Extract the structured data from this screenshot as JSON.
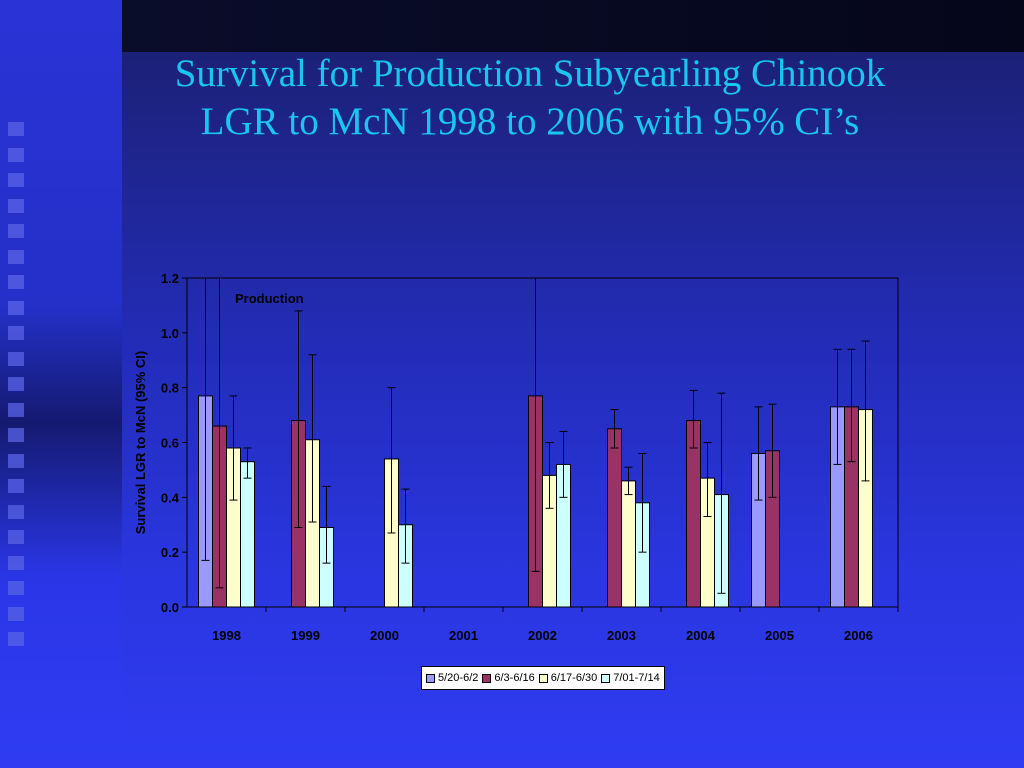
{
  "slide": {
    "title_line1": "Survival for Production Subyearling Chinook",
    "title_line2": "LGR to McN 1998 to 2006 with 95% CI’s"
  },
  "colors": {
    "title": "#19c6f0",
    "series": [
      "#9999ff",
      "#993366",
      "#ffffcc",
      "#ccffff"
    ]
  },
  "chart_data": {
    "type": "bar",
    "title": "",
    "annotation": "Production",
    "xlabel": "",
    "ylabel": "Survival LGR to McN (95% CI)",
    "ylim": [
      0,
      1.2
    ],
    "yticks": [
      "0.0",
      "0.2",
      "0.4",
      "0.6",
      "0.8",
      "1.0",
      "1.2"
    ],
    "grid": false,
    "legend_position": "bottom",
    "categories": [
      "1998",
      "1999",
      "2000",
      "2001",
      "2002",
      "2003",
      "2004",
      "2005",
      "2006"
    ],
    "series": [
      {
        "name": "5/20-6/2",
        "values": [
          0.77,
          null,
          null,
          null,
          null,
          null,
          null,
          0.56,
          0.73
        ],
        "ci_low": [
          0.17,
          null,
          null,
          null,
          null,
          null,
          null,
          0.39,
          0.52
        ],
        "ci_high": [
          1.2,
          null,
          null,
          null,
          null,
          null,
          null,
          0.73,
          0.94
        ]
      },
      {
        "name": "6/3-6/16",
        "values": [
          0.66,
          0.68,
          null,
          null,
          0.77,
          0.65,
          0.68,
          0.57,
          0.73
        ],
        "ci_low": [
          0.07,
          0.29,
          null,
          null,
          0.13,
          0.58,
          0.58,
          0.4,
          0.53
        ],
        "ci_high": [
          1.2,
          1.08,
          null,
          null,
          1.2,
          0.72,
          0.79,
          0.74,
          0.94
        ]
      },
      {
        "name": "6/17-6/30",
        "values": [
          0.58,
          0.61,
          0.54,
          null,
          0.48,
          0.46,
          0.47,
          null,
          0.72
        ],
        "ci_low": [
          0.39,
          0.31,
          0.27,
          null,
          0.36,
          0.41,
          0.33,
          null,
          0.46
        ],
        "ci_high": [
          0.77,
          0.92,
          0.8,
          null,
          0.6,
          0.51,
          0.6,
          null,
          0.97
        ]
      },
      {
        "name": "7/01-7/14",
        "values": [
          0.53,
          0.29,
          0.3,
          null,
          0.52,
          0.38,
          0.41,
          null,
          null
        ],
        "ci_low": [
          0.47,
          0.16,
          0.16,
          null,
          0.4,
          0.2,
          0.05,
          null,
          null
        ],
        "ci_high": [
          0.58,
          0.44,
          0.43,
          null,
          0.64,
          0.56,
          0.78,
          null,
          null
        ]
      }
    ]
  }
}
